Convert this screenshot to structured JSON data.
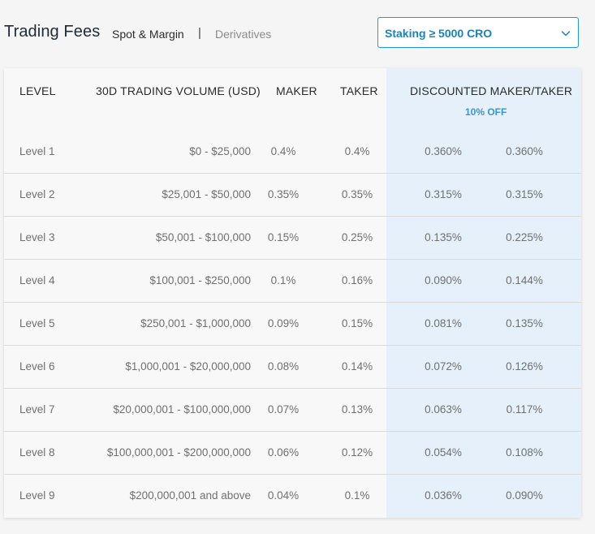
{
  "header": {
    "title": "Trading Fees",
    "tab_spot_margin": "Spot & Margin",
    "separator": "|",
    "tab_derivatives": "Derivatives"
  },
  "staking_select": {
    "value": "Staking ≥ 5000 CRO",
    "icon": "chevron-down-icon",
    "accent_color": "#1f9ad6"
  },
  "table": {
    "columns": {
      "level": "LEVEL",
      "volume": "30D TRADING VOLUME (USD)",
      "maker": "MAKER",
      "taker": "TAKER",
      "discounted": "DISCOUNTED MAKER/TAKER",
      "discount_note": "10% OFF"
    },
    "highlight_color": "#e5f0fa",
    "rows": [
      {
        "level": "Level 1",
        "volume": "$0 - $25,000",
        "maker": "0.4%",
        "taker": "0.4%",
        "d_maker": "0.360%",
        "d_taker": "0.360%"
      },
      {
        "level": "Level 2",
        "volume": "$25,001 - $50,000",
        "maker": "0.35%",
        "taker": "0.35%",
        "d_maker": "0.315%",
        "d_taker": "0.315%"
      },
      {
        "level": "Level 3",
        "volume": "$50,001 - $100,000",
        "maker": "0.15%",
        "taker": "0.25%",
        "d_maker": "0.135%",
        "d_taker": "0.225%"
      },
      {
        "level": "Level 4",
        "volume": "$100,001 - $250,000",
        "maker": "0.1%",
        "taker": "0.16%",
        "d_maker": "0.090%",
        "d_taker": "0.144%"
      },
      {
        "level": "Level 5",
        "volume": "$250,001 - $1,000,000",
        "maker": "0.09%",
        "taker": "0.15%",
        "d_maker": "0.081%",
        "d_taker": "0.135%"
      },
      {
        "level": "Level 6",
        "volume": "$1,000,001 - $20,000,000",
        "maker": "0.08%",
        "taker": "0.14%",
        "d_maker": "0.072%",
        "d_taker": "0.126%"
      },
      {
        "level": "Level 7",
        "volume": "$20,000,001 - $100,000,000",
        "maker": "0.07%",
        "taker": "0.13%",
        "d_maker": "0.063%",
        "d_taker": "0.117%"
      },
      {
        "level": "Level 8",
        "volume": "$100,000,001 - $200,000,000",
        "maker": "0.06%",
        "taker": "0.12%",
        "d_maker": "0.054%",
        "d_taker": "0.108%"
      },
      {
        "level": "Level 9",
        "volume": "$200,000,001 and above",
        "maker": "0.04%",
        "taker": "0.1%",
        "d_maker": "0.036%",
        "d_taker": "0.090%"
      }
    ]
  }
}
